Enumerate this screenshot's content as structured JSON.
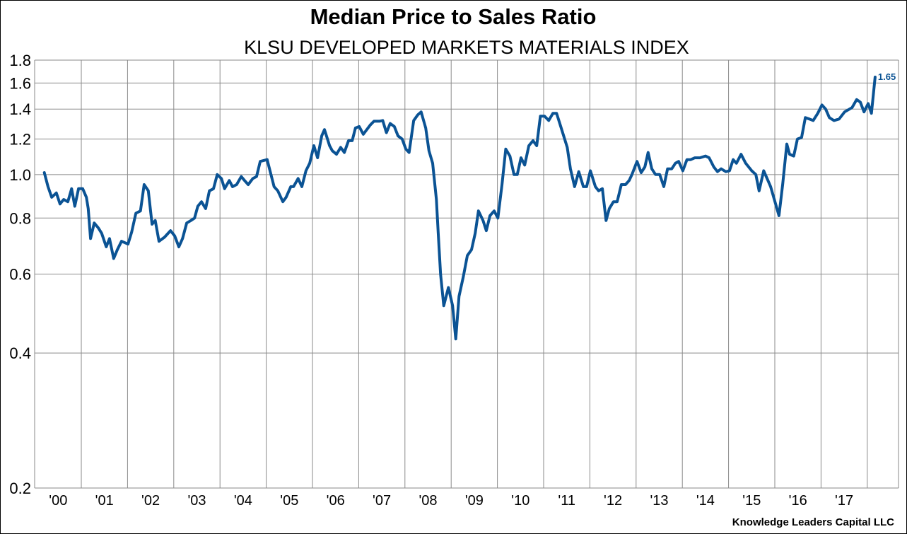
{
  "chart_data": {
    "type": "line",
    "title": "Median Price to Sales Ratio",
    "subtitle": "KLSU DEVELOPED MARKETS MATERIALS INDEX",
    "xlabel": "",
    "ylabel": "",
    "yscale": "log",
    "ylim": [
      0.2,
      1.8
    ],
    "xlim": [
      2000,
      2018.7
    ],
    "grid": true,
    "y_ticks": [
      "1.8",
      "1.6",
      "1.4",
      "1.2",
      "1.0",
      "0.8",
      "0.6",
      "0.4",
      "0.2"
    ],
    "y_tick_values": [
      1.8,
      1.6,
      1.4,
      1.2,
      1.0,
      0.8,
      0.6,
      0.4,
      0.2
    ],
    "x_ticks": [
      "'00",
      "'01",
      "'02",
      "'03",
      "'04",
      "'05",
      "'06",
      "'07",
      "'08",
      "'09",
      "'10",
      "'11",
      "'12",
      "'13",
      "'14",
      "'15",
      "'16",
      "'17"
    ],
    "end_label": "1.65",
    "line_color": "#0B5394",
    "footer": "Knowledge Leaders Capital LLC",
    "series": [
      {
        "name": "Median Price to Sales Ratio",
        "points": [
          [
            2000.2,
            1.01
          ],
          [
            2000.28,
            0.94
          ],
          [
            2000.36,
            0.89
          ],
          [
            2000.46,
            0.91
          ],
          [
            2000.54,
            0.86
          ],
          [
            2000.62,
            0.88
          ],
          [
            2000.71,
            0.87
          ],
          [
            2000.79,
            0.93
          ],
          [
            2000.86,
            0.85
          ],
          [
            2000.94,
            0.93
          ],
          [
            2001.03,
            0.93
          ],
          [
            2001.11,
            0.89
          ],
          [
            2001.15,
            0.84
          ],
          [
            2001.2,
            0.72
          ],
          [
            2001.28,
            0.78
          ],
          [
            2001.37,
            0.76
          ],
          [
            2001.44,
            0.74
          ],
          [
            2001.54,
            0.69
          ],
          [
            2001.61,
            0.72
          ],
          [
            2001.7,
            0.65
          ],
          [
            2001.78,
            0.68
          ],
          [
            2001.87,
            0.71
          ],
          [
            2002.01,
            0.7
          ],
          [
            2002.09,
            0.745
          ],
          [
            2002.18,
            0.82
          ],
          [
            2002.28,
            0.83
          ],
          [
            2002.36,
            0.95
          ],
          [
            2002.45,
            0.92
          ],
          [
            2002.53,
            0.775
          ],
          [
            2002.6,
            0.79
          ],
          [
            2002.68,
            0.71
          ],
          [
            2002.8,
            0.725
          ],
          [
            2002.93,
            0.75
          ],
          [
            2003.02,
            0.73
          ],
          [
            2003.11,
            0.69
          ],
          [
            2003.19,
            0.72
          ],
          [
            2003.28,
            0.78
          ],
          [
            2003.37,
            0.79
          ],
          [
            2003.45,
            0.8
          ],
          [
            2003.52,
            0.85
          ],
          [
            2003.6,
            0.87
          ],
          [
            2003.69,
            0.84
          ],
          [
            2003.77,
            0.92
          ],
          [
            2003.86,
            0.93
          ],
          [
            2003.94,
            1.0
          ],
          [
            2004.03,
            0.98
          ],
          [
            2004.1,
            0.93
          ],
          [
            2004.2,
            0.97
          ],
          [
            2004.27,
            0.94
          ],
          [
            2004.36,
            0.95
          ],
          [
            2004.46,
            0.99
          ],
          [
            2004.53,
            0.97
          ],
          [
            2004.61,
            0.95
          ],
          [
            2004.71,
            0.98
          ],
          [
            2004.79,
            0.99
          ],
          [
            2004.87,
            1.07
          ],
          [
            2005.02,
            1.08
          ],
          [
            2005.17,
            0.94
          ],
          [
            2005.25,
            0.92
          ],
          [
            2005.36,
            0.87
          ],
          [
            2005.43,
            0.89
          ],
          [
            2005.53,
            0.94
          ],
          [
            2005.59,
            0.94
          ],
          [
            2005.69,
            0.98
          ],
          [
            2005.77,
            0.94
          ],
          [
            2005.86,
            1.02
          ],
          [
            2005.94,
            1.06
          ],
          [
            2006.03,
            1.16
          ],
          [
            2006.11,
            1.09
          ],
          [
            2006.2,
            1.22
          ],
          [
            2006.26,
            1.26
          ],
          [
            2006.37,
            1.16
          ],
          [
            2006.43,
            1.13
          ],
          [
            2006.52,
            1.11
          ],
          [
            2006.61,
            1.15
          ],
          [
            2006.69,
            1.12
          ],
          [
            2006.78,
            1.19
          ],
          [
            2006.86,
            1.19
          ],
          [
            2006.93,
            1.27
          ],
          [
            2007.01,
            1.28
          ],
          [
            2007.1,
            1.23
          ],
          [
            2007.25,
            1.29
          ],
          [
            2007.33,
            1.315
          ],
          [
            2007.45,
            1.315
          ],
          [
            2007.52,
            1.32
          ],
          [
            2007.6,
            1.24
          ],
          [
            2007.68,
            1.3
          ],
          [
            2007.77,
            1.28
          ],
          [
            2007.85,
            1.22
          ],
          [
            2007.94,
            1.2
          ],
          [
            2008.02,
            1.14
          ],
          [
            2008.09,
            1.12
          ],
          [
            2008.19,
            1.32
          ],
          [
            2008.28,
            1.36
          ],
          [
            2008.35,
            1.38
          ],
          [
            2008.45,
            1.27
          ],
          [
            2008.52,
            1.13
          ],
          [
            2008.6,
            1.06
          ],
          [
            2008.68,
            0.88
          ],
          [
            2008.72,
            0.74
          ],
          [
            2008.77,
            0.6
          ],
          [
            2008.84,
            0.51
          ],
          [
            2008.94,
            0.56
          ],
          [
            2009.03,
            0.51
          ],
          [
            2009.1,
            0.43
          ],
          [
            2009.17,
            0.535
          ],
          [
            2009.26,
            0.59
          ],
          [
            2009.35,
            0.66
          ],
          [
            2009.44,
            0.68
          ],
          [
            2009.52,
            0.74
          ],
          [
            2009.59,
            0.83
          ],
          [
            2009.69,
            0.79
          ],
          [
            2009.76,
            0.75
          ],
          [
            2009.84,
            0.81
          ],
          [
            2009.93,
            0.83
          ],
          [
            2010.01,
            0.8
          ],
          [
            2010.1,
            0.95
          ],
          [
            2010.18,
            1.14
          ],
          [
            2010.27,
            1.1
          ],
          [
            2010.36,
            1.0
          ],
          [
            2010.43,
            1.0
          ],
          [
            2010.51,
            1.09
          ],
          [
            2010.59,
            1.05
          ],
          [
            2010.68,
            1.16
          ],
          [
            2010.77,
            1.19
          ],
          [
            2010.85,
            1.16
          ],
          [
            2010.93,
            1.35
          ],
          [
            2011.02,
            1.35
          ],
          [
            2011.11,
            1.32
          ],
          [
            2011.2,
            1.37
          ],
          [
            2011.28,
            1.37
          ],
          [
            2011.37,
            1.28
          ],
          [
            2011.51,
            1.15
          ],
          [
            2011.58,
            1.03
          ],
          [
            2011.67,
            0.94
          ],
          [
            2011.76,
            1.015
          ],
          [
            2011.86,
            0.94
          ],
          [
            2011.93,
            0.94
          ],
          [
            2012.01,
            1.02
          ],
          [
            2012.12,
            0.94
          ],
          [
            2012.19,
            0.92
          ],
          [
            2012.27,
            0.93
          ],
          [
            2012.35,
            0.79
          ],
          [
            2012.42,
            0.84
          ],
          [
            2012.51,
            0.87
          ],
          [
            2012.59,
            0.87
          ],
          [
            2012.68,
            0.95
          ],
          [
            2012.77,
            0.95
          ],
          [
            2012.85,
            0.97
          ],
          [
            2012.91,
            1.0
          ],
          [
            2013.02,
            1.07
          ],
          [
            2013.11,
            1.01
          ],
          [
            2013.19,
            1.04
          ],
          [
            2013.26,
            1.12
          ],
          [
            2013.34,
            1.03
          ],
          [
            2013.42,
            1.0
          ],
          [
            2013.51,
            1.0
          ],
          [
            2013.6,
            0.94
          ],
          [
            2013.68,
            1.03
          ],
          [
            2013.77,
            1.03
          ],
          [
            2013.85,
            1.06
          ],
          [
            2013.92,
            1.07
          ],
          [
            2014.01,
            1.02
          ],
          [
            2014.1,
            1.08
          ],
          [
            2014.18,
            1.08
          ],
          [
            2014.27,
            1.09
          ],
          [
            2014.38,
            1.09
          ],
          [
            2014.5,
            1.1
          ],
          [
            2014.58,
            1.09
          ],
          [
            2014.68,
            1.04
          ],
          [
            2014.76,
            1.015
          ],
          [
            2014.84,
            1.03
          ],
          [
            2014.94,
            1.015
          ],
          [
            2015.02,
            1.02
          ],
          [
            2015.1,
            1.08
          ],
          [
            2015.17,
            1.06
          ],
          [
            2015.27,
            1.11
          ],
          [
            2015.37,
            1.06
          ],
          [
            2015.5,
            1.02
          ],
          [
            2015.59,
            1.0
          ],
          [
            2015.66,
            0.92
          ],
          [
            2015.76,
            1.02
          ],
          [
            2015.91,
            0.94
          ],
          [
            2016.09,
            0.81
          ],
          [
            2016.17,
            0.95
          ],
          [
            2016.26,
            1.17
          ],
          [
            2016.32,
            1.11
          ],
          [
            2016.41,
            1.1
          ],
          [
            2016.49,
            1.2
          ],
          [
            2016.58,
            1.21
          ],
          [
            2016.66,
            1.34
          ],
          [
            2016.75,
            1.33
          ],
          [
            2016.83,
            1.32
          ],
          [
            2016.93,
            1.37
          ],
          [
            2017.02,
            1.43
          ],
          [
            2017.1,
            1.4
          ],
          [
            2017.18,
            1.34
          ],
          [
            2017.28,
            1.32
          ],
          [
            2017.39,
            1.33
          ],
          [
            2017.51,
            1.38
          ],
          [
            2017.67,
            1.41
          ],
          [
            2017.77,
            1.47
          ],
          [
            2017.85,
            1.45
          ],
          [
            2017.93,
            1.38
          ],
          [
            2018.02,
            1.44
          ],
          [
            2018.09,
            1.37
          ],
          [
            2018.17,
            1.65
          ]
        ]
      }
    ]
  }
}
